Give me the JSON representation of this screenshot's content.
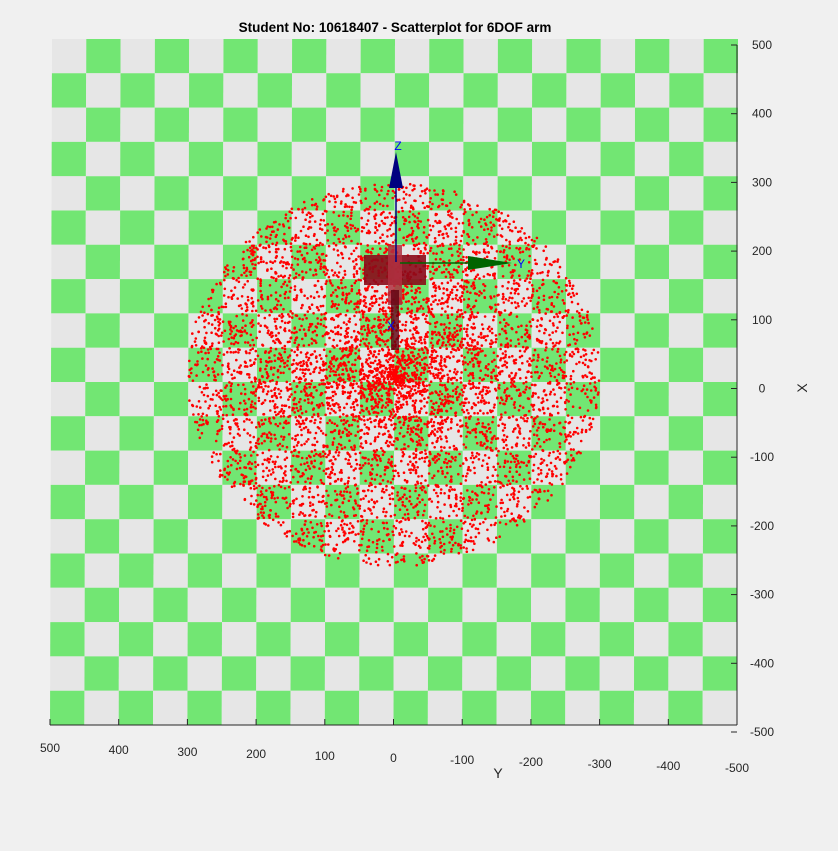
{
  "chart_data": {
    "type": "scatter",
    "title": "Student No: 10618407 - Scatterplot for 6DOF arm",
    "xlabel": "Y",
    "ylabel": "X",
    "xlim": [
      500,
      -500
    ],
    "ylim": [
      -500,
      500
    ],
    "x_ticks": [
      "500",
      "400",
      "300",
      "200",
      "100",
      "0",
      "-100",
      "-200",
      "-300",
      "-400",
      "-500"
    ],
    "y_ticks": [
      "500",
      "400",
      "300",
      "200",
      "100",
      "0",
      "-100",
      "-200",
      "-300",
      "-400",
      "-500"
    ],
    "grid": false,
    "floor": {
      "pattern": "checkerboard",
      "colors": [
        "#e6e6e6",
        "#72e673"
      ],
      "squares": 20
    },
    "series": [
      {
        "marker": "dot",
        "color": "#ff0000",
        "point_count": 6000,
        "distribution": {
          "center": [
            0,
            20
          ],
          "radius": 300,
          "note": "dense near origin, thinning toward radius ~300"
        }
      }
    ],
    "annotations": [
      {
        "text": "Z",
        "color": "#0000ff"
      },
      {
        "text": "Y",
        "color": "#0000ff"
      },
      {
        "text": "X",
        "color": "#0000ff"
      }
    ]
  },
  "colors": {
    "background": "#f0f0f0",
    "points": "#ff0000",
    "axis": "#262626",
    "arrow_z": "#000080",
    "arrow_y": "#006400",
    "label_blue": "#0000ff"
  }
}
